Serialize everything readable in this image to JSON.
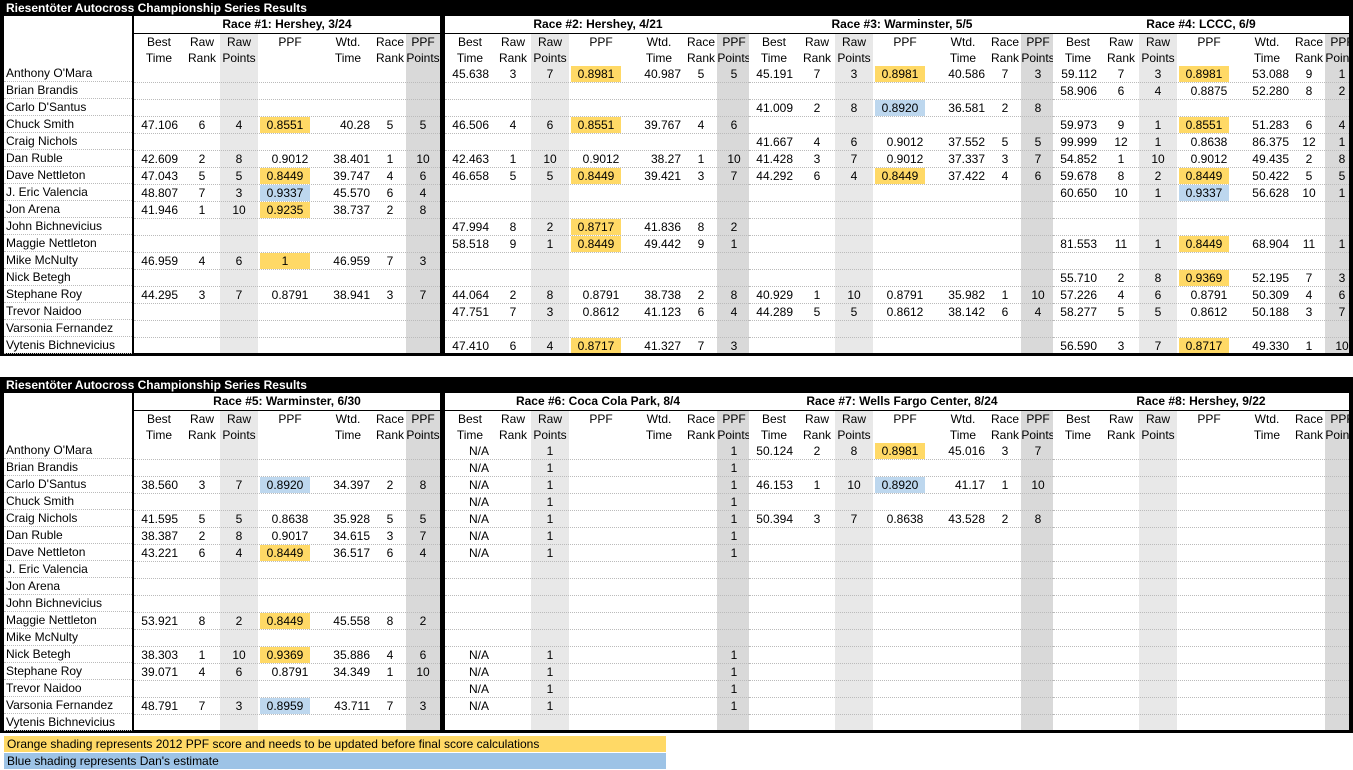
{
  "sheet_title": "Riesentöter Autocross Championship Series Results",
  "names": [
    "Anthony O'Mara",
    "Brian Brandis",
    "Carlo D'Santus",
    "Chuck Smith",
    "Craig Nichols",
    "Dan Ruble",
    "Dave Nettleton",
    "J. Eric Valencia",
    "Jon Arena",
    "John Bichnevicius",
    "Maggie Nettleton",
    "Mike McNulty",
    "Nick Betegh",
    "Stephane Roy",
    "Trevor Naidoo",
    "Varsonia Fernandez",
    "Vytenis Bichnevicius"
  ],
  "headers": {
    "best": [
      "Best",
      "Time"
    ],
    "rawrank": [
      "Raw",
      "Rank"
    ],
    "rawpts": [
      "Raw",
      "Points"
    ],
    "ppf": [
      "",
      "PPF"
    ],
    "wtd": [
      "Wtd.",
      "Time"
    ],
    "racerank": [
      "Race",
      "Rank"
    ],
    "ppfpts": [
      "PPF",
      "Points"
    ]
  },
  "colors": {
    "orange": "#ffd966",
    "blue": "#bdd7ee",
    "legend_orange": "#ffd966",
    "legend_blue": "#9dc3e6"
  },
  "races": [
    {
      "title": "Race #1:  Hershey, 3/24",
      "rows": [
        null,
        null,
        null,
        [
          "47.106",
          "6",
          "4",
          "0.8551",
          "40.28",
          "5",
          "5",
          "o"
        ],
        null,
        [
          "42.609",
          "2",
          "8",
          "0.9012",
          "38.401",
          "1",
          "10",
          ""
        ],
        [
          "47.043",
          "5",
          "5",
          "0.8449",
          "39.747",
          "4",
          "6",
          "o"
        ],
        [
          "48.807",
          "7",
          "3",
          "0.9337",
          "45.570",
          "6",
          "4",
          "b"
        ],
        [
          "41.946",
          "1",
          "10",
          "0.9235",
          "38.737",
          "2",
          "8",
          "o"
        ],
        null,
        null,
        [
          "46.959",
          "4",
          "6",
          "1",
          "46.959",
          "7",
          "3",
          "o"
        ],
        null,
        [
          "44.295",
          "3",
          "7",
          "0.8791",
          "38.941",
          "3",
          "7",
          ""
        ],
        null,
        null,
        null
      ]
    },
    {
      "title": "Race #2:  Hershey, 4/21",
      "rows": [
        [
          "45.638",
          "3",
          "7",
          "0.8981",
          "40.987",
          "5",
          "5",
          "o"
        ],
        null,
        null,
        [
          "46.506",
          "4",
          "6",
          "0.8551",
          "39.767",
          "4",
          "6",
          "o"
        ],
        null,
        [
          "42.463",
          "1",
          "10",
          "0.9012",
          "38.27",
          "1",
          "10",
          ""
        ],
        [
          "46.658",
          "5",
          "5",
          "0.8449",
          "39.421",
          "3",
          "7",
          "o"
        ],
        null,
        null,
        [
          "47.994",
          "8",
          "2",
          "0.8717",
          "41.836",
          "8",
          "2",
          "o"
        ],
        [
          "58.518",
          "9",
          "1",
          "0.8449",
          "49.442",
          "9",
          "1",
          "o"
        ],
        null,
        null,
        [
          "44.064",
          "2",
          "8",
          "0.8791",
          "38.738",
          "2",
          "8",
          ""
        ],
        [
          "47.751",
          "7",
          "3",
          "0.8612",
          "41.123",
          "6",
          "4",
          ""
        ],
        null,
        [
          "47.410",
          "6",
          "4",
          "0.8717",
          "41.327",
          "7",
          "3",
          "o"
        ]
      ]
    },
    {
      "title": "Race #3:  Warminster, 5/5",
      "rows": [
        [
          "45.191",
          "7",
          "3",
          "0.8981",
          "40.586",
          "7",
          "3",
          "o"
        ],
        null,
        [
          "41.009",
          "2",
          "8",
          "0.8920",
          "36.581",
          "2",
          "8",
          "b"
        ],
        null,
        [
          "41.667",
          "4",
          "6",
          "0.9012",
          "37.552",
          "5",
          "5",
          ""
        ],
        [
          "41.428",
          "3",
          "7",
          "0.9012",
          "37.337",
          "3",
          "7",
          ""
        ],
        [
          "44.292",
          "6",
          "4",
          "0.8449",
          "37.422",
          "4",
          "6",
          "o"
        ],
        null,
        null,
        null,
        null,
        null,
        null,
        [
          "40.929",
          "1",
          "10",
          "0.8791",
          "35.982",
          "1",
          "10",
          ""
        ],
        [
          "44.289",
          "5",
          "5",
          "0.8612",
          "38.142",
          "6",
          "4",
          ""
        ],
        null,
        null
      ]
    },
    {
      "title": "Race #4:  LCCC, 6/9",
      "rows": [
        [
          "59.112",
          "7",
          "3",
          "0.8981",
          "53.088",
          "9",
          "1",
          "o"
        ],
        [
          "58.906",
          "6",
          "4",
          "0.8875",
          "52.280",
          "8",
          "2",
          ""
        ],
        null,
        [
          "59.973",
          "9",
          "1",
          "0.8551",
          "51.283",
          "6",
          "4",
          "o"
        ],
        [
          "99.999",
          "12",
          "1",
          "0.8638",
          "86.375",
          "12",
          "1",
          ""
        ],
        [
          "54.852",
          "1",
          "10",
          "0.9012",
          "49.435",
          "2",
          "8",
          ""
        ],
        [
          "59.678",
          "8",
          "2",
          "0.8449",
          "50.422",
          "5",
          "5",
          "o"
        ],
        [
          "60.650",
          "10",
          "1",
          "0.9337",
          "56.628",
          "10",
          "1",
          "b"
        ],
        null,
        null,
        [
          "81.553",
          "11",
          "1",
          "0.8449",
          "68.904",
          "11",
          "1",
          "o"
        ],
        null,
        [
          "55.710",
          "2",
          "8",
          "0.9369",
          "52.195",
          "7",
          "3",
          "o"
        ],
        [
          "57.226",
          "4",
          "6",
          "0.8791",
          "50.309",
          "4",
          "6",
          ""
        ],
        [
          "58.277",
          "5",
          "5",
          "0.8612",
          "50.188",
          "3",
          "7",
          ""
        ],
        null,
        [
          "56.590",
          "3",
          "7",
          "0.8717",
          "49.330",
          "1",
          "10",
          "o"
        ]
      ]
    },
    {
      "title": "Race #5:  Warminster, 6/30",
      "rows": [
        null,
        null,
        [
          "38.560",
          "3",
          "7",
          "0.8920",
          "34.397",
          "2",
          "8",
          "b"
        ],
        null,
        [
          "41.595",
          "5",
          "5",
          "0.8638",
          "35.928",
          "5",
          "5",
          ""
        ],
        [
          "38.387",
          "2",
          "8",
          "0.9017",
          "34.615",
          "3",
          "7",
          ""
        ],
        [
          "43.221",
          "6",
          "4",
          "0.8449",
          "36.517",
          "6",
          "4",
          "o"
        ],
        null,
        null,
        null,
        [
          "53.921",
          "8",
          "2",
          "0.8449",
          "45.558",
          "8",
          "2",
          "o"
        ],
        null,
        [
          "38.303",
          "1",
          "10",
          "0.9369",
          "35.886",
          "4",
          "6",
          "o"
        ],
        [
          "39.071",
          "4",
          "6",
          "0.8791",
          "34.349",
          "1",
          "10",
          ""
        ],
        null,
        [
          "48.791",
          "7",
          "3",
          "0.8959",
          "43.711",
          "7",
          "3",
          "b"
        ],
        null
      ]
    },
    {
      "title": "Race #6:  Coca Cola Park, 8/4",
      "rows": [
        [
          "N/A",
          "",
          "1",
          "",
          "",
          "",
          "1",
          ""
        ],
        [
          "N/A",
          "",
          "1",
          "",
          "",
          "",
          "1",
          ""
        ],
        [
          "N/A",
          "",
          "1",
          "",
          "",
          "",
          "1",
          ""
        ],
        [
          "N/A",
          "",
          "1",
          "",
          "",
          "",
          "1",
          ""
        ],
        [
          "N/A",
          "",
          "1",
          "",
          "",
          "",
          "1",
          ""
        ],
        [
          "N/A",
          "",
          "1",
          "",
          "",
          "",
          "1",
          ""
        ],
        [
          "N/A",
          "",
          "1",
          "",
          "",
          "",
          "1",
          ""
        ],
        null,
        null,
        null,
        null,
        null,
        [
          "N/A",
          "",
          "1",
          "",
          "",
          "",
          "1",
          ""
        ],
        [
          "N/A",
          "",
          "1",
          "",
          "",
          "",
          "1",
          ""
        ],
        [
          "N/A",
          "",
          "1",
          "",
          "",
          "",
          "1",
          ""
        ],
        [
          "N/A",
          "",
          "1",
          "",
          "",
          "",
          "1",
          ""
        ],
        null
      ]
    },
    {
      "title": "Race #7:  Wells Fargo Center, 8/24",
      "rows": [
        [
          "50.124",
          "2",
          "8",
          "0.8981",
          "45.016",
          "3",
          "7",
          "o"
        ],
        null,
        [
          "46.153",
          "1",
          "10",
          "0.8920",
          "41.17",
          "1",
          "10",
          "b"
        ],
        null,
        [
          "50.394",
          "3",
          "7",
          "0.8638",
          "43.528",
          "2",
          "8",
          ""
        ],
        null,
        null,
        null,
        null,
        null,
        null,
        null,
        null,
        null,
        null,
        null,
        null
      ]
    },
    {
      "title": "Race #8:  Hershey, 9/22",
      "rows": [
        null,
        null,
        null,
        null,
        null,
        null,
        null,
        null,
        null,
        null,
        null,
        null,
        null,
        null,
        null,
        null,
        null
      ]
    }
  ],
  "legend": {
    "orange_text": "Orange shading represents 2012 PPF score and needs to be updated before final score calculations",
    "blue_text": "Blue shading represents Dan's estimate"
  }
}
